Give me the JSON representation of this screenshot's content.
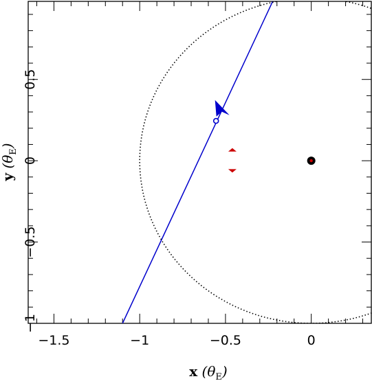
{
  "chart_data": {
    "type": "line",
    "title": "",
    "xlabel": "x (θ_E)",
    "ylabel": "y (θ_E)",
    "xlabel_parts": {
      "var": "x",
      "open": " (",
      "theta": "θ",
      "sub": "E",
      "close": ")"
    },
    "ylabel_parts": {
      "var": "y",
      "open": " (",
      "theta": "θ",
      "sub": "E",
      "close": ")"
    },
    "xlim": [
      -1.65,
      0.35
    ],
    "ylim": [
      -1.0,
      0.98
    ],
    "grid": false,
    "x_ticks": [
      {
        "value": -1.5,
        "label": "−1.5"
      },
      {
        "value": -1.0,
        "label": "−1"
      },
      {
        "value": -0.5,
        "label": "−0.5"
      },
      {
        "value": 0.0,
        "label": "0"
      }
    ],
    "y_ticks": [
      {
        "value": -1.0,
        "label": "−1"
      },
      {
        "value": -0.5,
        "label": "−0.5"
      },
      {
        "value": 0.0,
        "label": "0"
      },
      {
        "value": 0.5,
        "label": "0.5"
      }
    ],
    "series": [
      {
        "kind": "source-trajectory",
        "color": "#0000cc",
        "points": [
          [
            -1.1,
            -1.0
          ],
          [
            -0.225,
            0.98
          ]
        ]
      },
      {
        "kind": "einstein-ring",
        "color": "#000000",
        "style": "dotted",
        "center": [
          0.0,
          0.0
        ],
        "radius": 1.0
      }
    ],
    "markers": [
      {
        "kind": "source-position",
        "color": "#0000cc",
        "x": -0.555,
        "y": 0.245
      },
      {
        "kind": "direction-arrow",
        "color": "#0000cc",
        "x": -0.525,
        "y": 0.31
      },
      {
        "kind": "lens-mass",
        "color": "#000000",
        "x": 0.0,
        "y": 0.0
      },
      {
        "kind": "lens-center",
        "color": "#cc0000",
        "x": 0.0,
        "y": 0.0
      },
      {
        "kind": "caustic-up",
        "color": "#cc0000",
        "x": -0.46,
        "y": 0.065
      },
      {
        "kind": "caustic-down",
        "color": "#cc0000",
        "x": -0.46,
        "y": -0.06
      }
    ]
  }
}
